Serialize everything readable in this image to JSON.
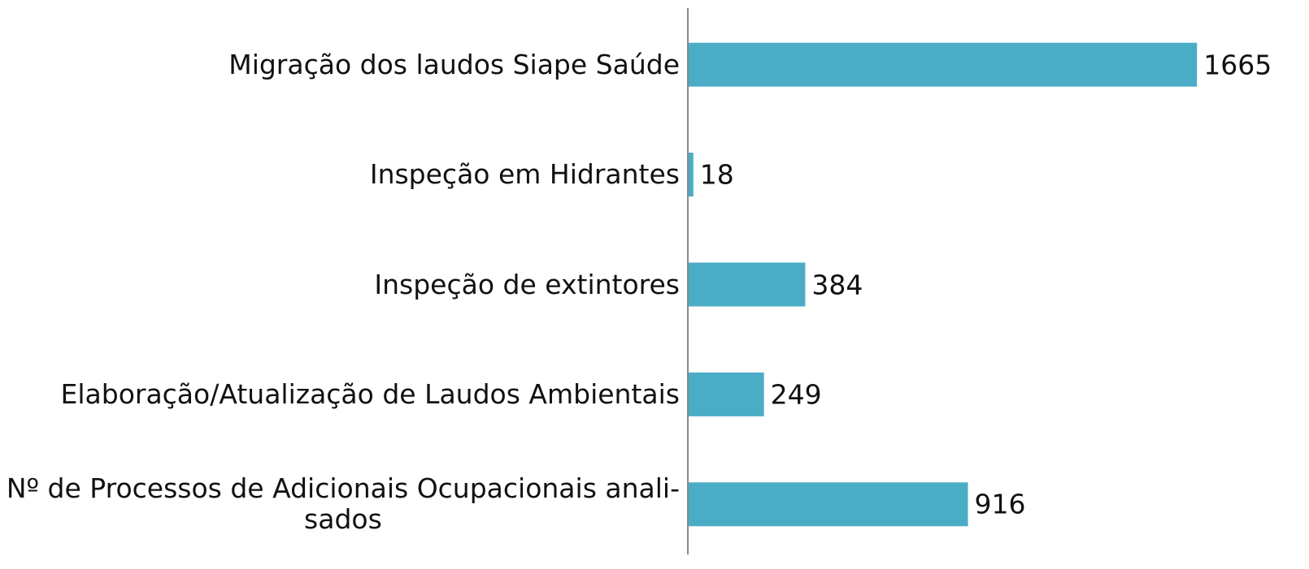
{
  "chart_data": {
    "type": "barh",
    "categories": [
      "Migração dos laudos Siape Saúde",
      "Inspeção em Hidrantes",
      "Inspeção de extintores",
      "Elaboração/Atualização de Laudos Ambientais",
      "Nº de Processos de Adicionais Ocupacionais anali-\nsados"
    ],
    "values": [
      1665,
      18,
      384,
      249,
      916
    ],
    "color": "#4bacc6",
    "xlim": [
      0,
      1800
    ]
  }
}
